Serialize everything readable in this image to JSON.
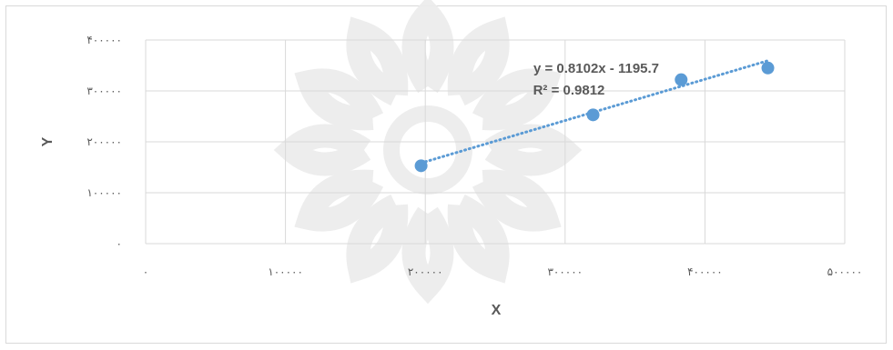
{
  "chart_data": {
    "type": "scatter",
    "title": "",
    "xlabel": "X",
    "ylabel": "Y",
    "xlim": [
      0,
      500000
    ],
    "ylim": [
      0,
      400000
    ],
    "x_ticks": [
      {
        "value": 0,
        "label": "۰"
      },
      {
        "value": 100000,
        "label": "۱۰۰۰۰۰"
      },
      {
        "value": 200000,
        "label": "۲۰۰۰۰۰"
      },
      {
        "value": 300000,
        "label": "۳۰۰۰۰۰"
      },
      {
        "value": 400000,
        "label": "۴۰۰۰۰۰"
      },
      {
        "value": 500000,
        "label": "۵۰۰۰۰۰"
      }
    ],
    "y_ticks": [
      {
        "value": 0,
        "label": "۰"
      },
      {
        "value": 100000,
        "label": "۱۰۰۰۰۰"
      },
      {
        "value": 200000,
        "label": "۲۰۰۰۰۰"
      },
      {
        "value": 300000,
        "label": "۳۰۰۰۰۰"
      },
      {
        "value": 400000,
        "label": "۴۰۰۰۰۰"
      }
    ],
    "grid": true,
    "series": [
      {
        "points": [
          {
            "x": 197000,
            "y": 153000
          },
          {
            "x": 320000,
            "y": 253000
          },
          {
            "x": 383000,
            "y": 322000
          },
          {
            "x": 445000,
            "y": 345000
          }
        ],
        "color": "#5b9bd5"
      }
    ],
    "trendline": {
      "type": "linear",
      "equation": "y = 0.8102x - 1195.7",
      "r_squared": "R² = 0.9812",
      "from_x": 197000,
      "to_x": 445000,
      "slope": 0.8102,
      "intercept": -1195.7,
      "color": "#5b9bd5",
      "style": "dotted"
    }
  }
}
